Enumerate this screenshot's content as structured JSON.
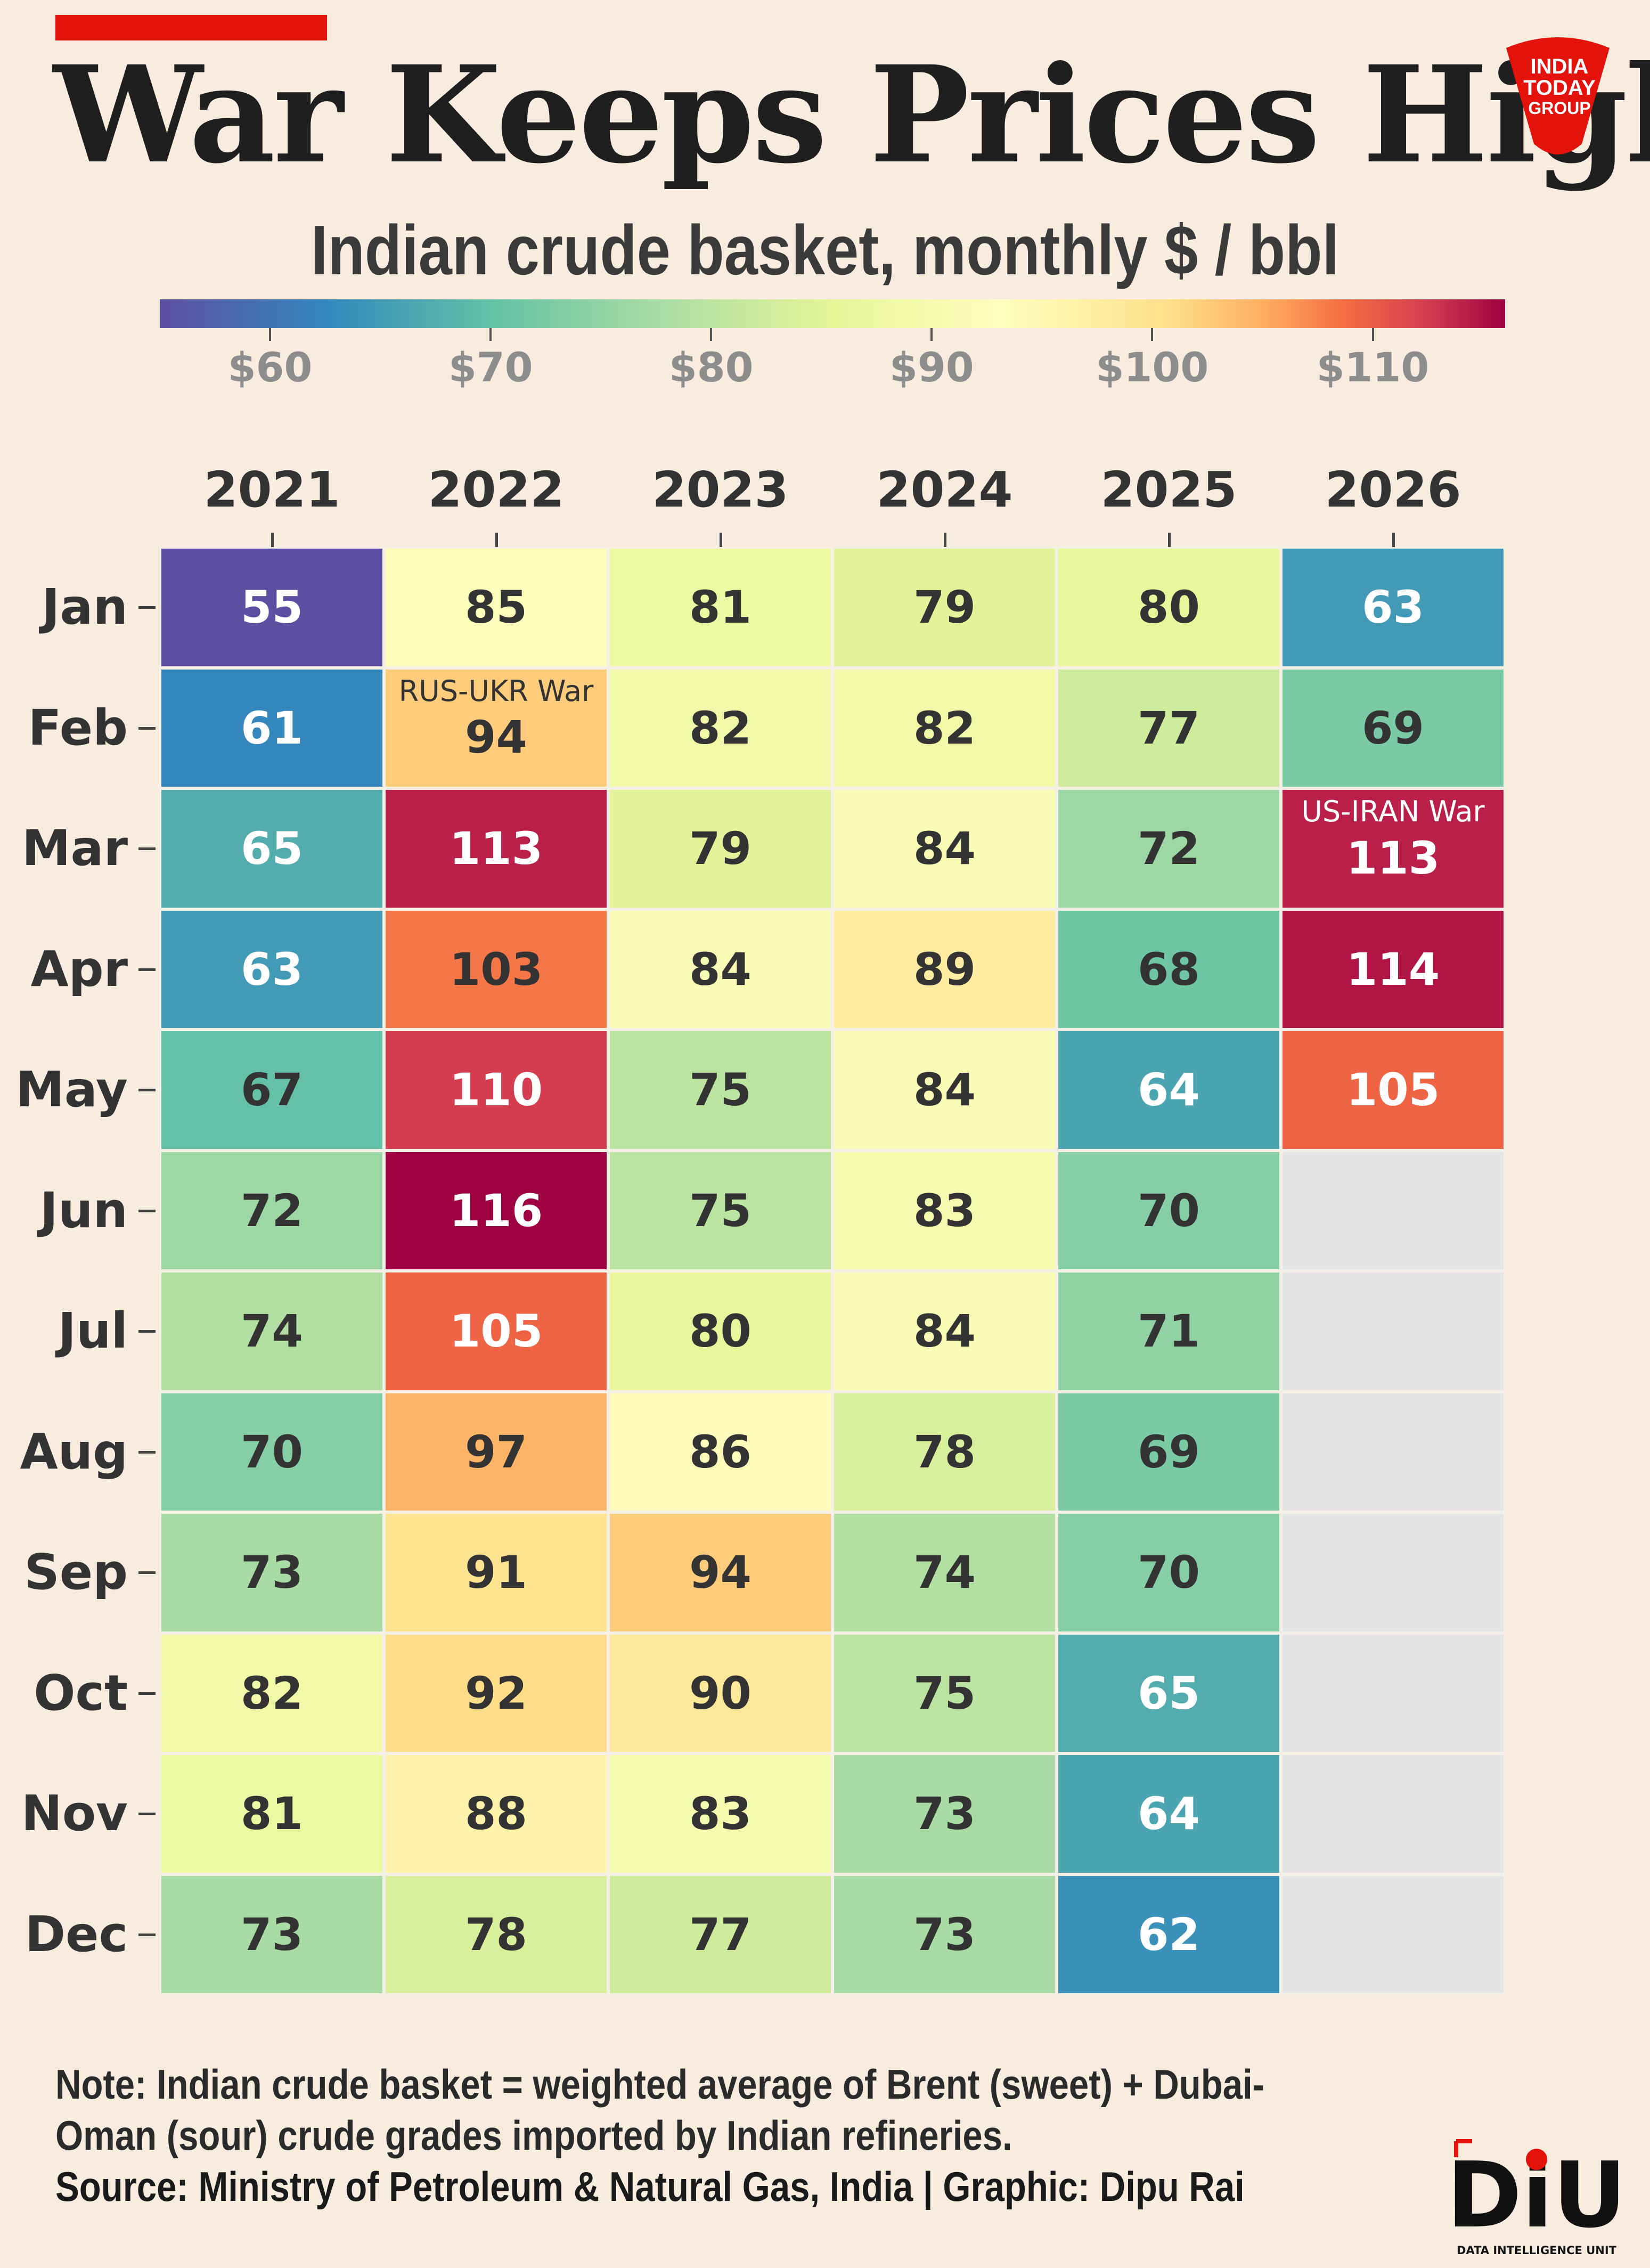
{
  "header": {
    "title": "War Keeps Prices High",
    "subtitle": "Indian crude basket, monthly $ / bbl",
    "logo_lines": [
      "INDIA",
      "TODAY",
      "GROUP"
    ]
  },
  "colors": {
    "accent": "#e3120b",
    "missing": "#e5e5e5",
    "palette": [
      "#5e4fa2",
      "#3288bd",
      "#66c2a5",
      "#abdda4",
      "#e6f598",
      "#ffffbf",
      "#fee08b",
      "#fdae61",
      "#f46d43",
      "#d53e4f",
      "#9e0142"
    ]
  },
  "chart_data": {
    "type": "heatmap",
    "title": "War Keeps Prices High",
    "subtitle": "Indian crude basket, monthly $ / bbl",
    "x": [
      "2021",
      "2022",
      "2023",
      "2024",
      "2025",
      "2026"
    ],
    "y": [
      "Jan",
      "Feb",
      "Mar",
      "Apr",
      "May",
      "Jun",
      "Jul",
      "Aug",
      "Sep",
      "Oct",
      "Nov",
      "Dec"
    ],
    "values": [
      [
        55,
        85,
        81,
        79,
        80,
        63
      ],
      [
        61,
        94,
        82,
        82,
        77,
        69
      ],
      [
        65,
        113,
        79,
        84,
        72,
        113
      ],
      [
        63,
        103,
        84,
        89,
        68,
        114
      ],
      [
        67,
        110,
        75,
        84,
        64,
        105
      ],
      [
        72,
        116,
        75,
        83,
        70,
        null
      ],
      [
        74,
        105,
        80,
        84,
        71,
        null
      ],
      [
        70,
        97,
        86,
        78,
        69,
        null
      ],
      [
        73,
        91,
        94,
        74,
        70,
        null
      ],
      [
        82,
        92,
        90,
        75,
        65,
        null
      ],
      [
        81,
        88,
        83,
        73,
        64,
        null
      ],
      [
        73,
        78,
        77,
        73,
        62,
        null
      ]
    ],
    "color_range": [
      55,
      116
    ],
    "colorbar_ticks": [
      60,
      70,
      80,
      90,
      100,
      110
    ],
    "colorbar_labels": [
      "$60",
      "$70",
      "$80",
      "$90",
      "$100",
      "$110"
    ],
    "annotations": [
      {
        "year": "2022",
        "month": "Feb",
        "text": "RUS-UKR War"
      },
      {
        "year": "2026",
        "month": "Mar",
        "text": "US-IRAN War"
      }
    ]
  },
  "footer": {
    "note": "Note: Indian crude basket = weighted average of Brent (sweet) + Dubai-Oman (sour) crude grades imported by Indian refineries.",
    "source": "Source: Ministry of Petroleum & Natural Gas, India | Graphic: Dipu Rai",
    "diu_logo": "DiU",
    "diu_caption": "DATA INTELLIGENCE UNIT"
  }
}
